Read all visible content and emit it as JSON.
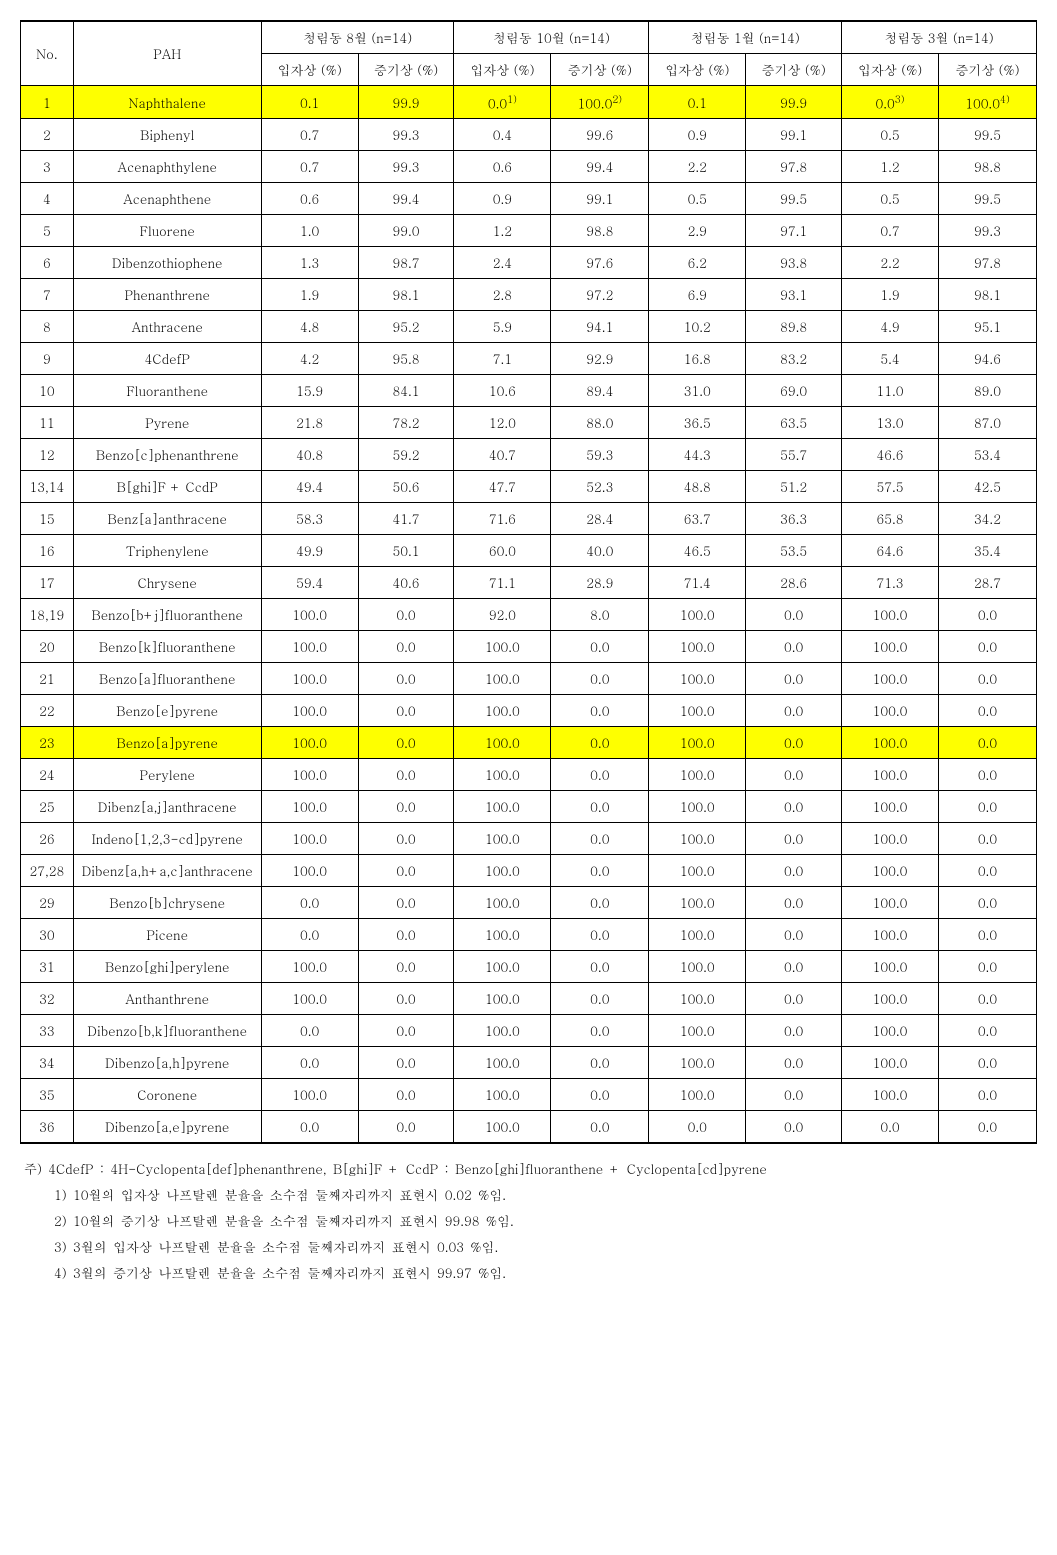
{
  "header": {
    "no": "No.",
    "pah": "PAH",
    "months": [
      {
        "title": "청림동 8월 (n=14)",
        "sub1": "입자상 (%)",
        "sub2": "증기상 (%)"
      },
      {
        "title": "청림동 10월 (n=14)",
        "sub1": "입자상 (%)",
        "sub2": "증기상 (%)"
      },
      {
        "title": "청림동 1월 (n=14)",
        "sub1": "입자상 (%)",
        "sub2": "증기상 (%)"
      },
      {
        "title": "청림동 3월 (n=14)",
        "sub1": "입자상 (%)",
        "sub2": "증기상 (%)"
      }
    ]
  },
  "rows": [
    {
      "no": "1",
      "pah": "Naphthalene",
      "v": [
        "0.1",
        "99.9",
        "0.0",
        "100.0",
        "0.1",
        "99.9",
        "0.0",
        "100.0"
      ],
      "sup": [
        "",
        "",
        "1)",
        "2)",
        "",
        "",
        "3)",
        "4)"
      ],
      "hl": true
    },
    {
      "no": "2",
      "pah": "Biphenyl",
      "v": [
        "0.7",
        "99.3",
        "0.4",
        "99.6",
        "0.9",
        "99.1",
        "0.5",
        "99.5"
      ]
    },
    {
      "no": "3",
      "pah": "Acenaphthylene",
      "v": [
        "0.7",
        "99.3",
        "0.6",
        "99.4",
        "2.2",
        "97.8",
        "1.2",
        "98.8"
      ]
    },
    {
      "no": "4",
      "pah": "Acenaphthene",
      "v": [
        "0.6",
        "99.4",
        "0.9",
        "99.1",
        "0.5",
        "99.5",
        "0.5",
        "99.5"
      ]
    },
    {
      "no": "5",
      "pah": "Fluorene",
      "v": [
        "1.0",
        "99.0",
        "1.2",
        "98.8",
        "2.9",
        "97.1",
        "0.7",
        "99.3"
      ]
    },
    {
      "no": "6",
      "pah": "Dibenzothiophene",
      "v": [
        "1.3",
        "98.7",
        "2.4",
        "97.6",
        "6.2",
        "93.8",
        "2.2",
        "97.8"
      ]
    },
    {
      "no": "7",
      "pah": "Phenanthrene",
      "v": [
        "1.9",
        "98.1",
        "2.8",
        "97.2",
        "6.9",
        "93.1",
        "1.9",
        "98.1"
      ]
    },
    {
      "no": "8",
      "pah": "Anthracene",
      "v": [
        "4.8",
        "95.2",
        "5.9",
        "94.1",
        "10.2",
        "89.8",
        "4.9",
        "95.1"
      ]
    },
    {
      "no": "9",
      "pah": "4CdefP",
      "v": [
        "4.2",
        "95.8",
        "7.1",
        "92.9",
        "16.8",
        "83.2",
        "5.4",
        "94.6"
      ]
    },
    {
      "no": "10",
      "pah": "Fluoranthene",
      "v": [
        "15.9",
        "84.1",
        "10.6",
        "89.4",
        "31.0",
        "69.0",
        "11.0",
        "89.0"
      ]
    },
    {
      "no": "11",
      "pah": "Pyrene",
      "v": [
        "21.8",
        "78.2",
        "12.0",
        "88.0",
        "36.5",
        "63.5",
        "13.0",
        "87.0"
      ]
    },
    {
      "no": "12",
      "pah": "Benzo[c]phenanthrene",
      "v": [
        "40.8",
        "59.2",
        "40.7",
        "59.3",
        "44.3",
        "55.7",
        "46.6",
        "53.4"
      ]
    },
    {
      "no": "13,14",
      "pah": "B[ghi]F + CcdP",
      "v": [
        "49.4",
        "50.6",
        "47.7",
        "52.3",
        "48.8",
        "51.2",
        "57.5",
        "42.5"
      ]
    },
    {
      "no": "15",
      "pah": "Benz[a]anthracene",
      "v": [
        "58.3",
        "41.7",
        "71.6",
        "28.4",
        "63.7",
        "36.3",
        "65.8",
        "34.2"
      ]
    },
    {
      "no": "16",
      "pah": "Triphenylene",
      "v": [
        "49.9",
        "50.1",
        "60.0",
        "40.0",
        "46.5",
        "53.5",
        "64.6",
        "35.4"
      ]
    },
    {
      "no": "17",
      "pah": "Chrysene",
      "v": [
        "59.4",
        "40.6",
        "71.1",
        "28.9",
        "71.4",
        "28.6",
        "71.3",
        "28.7"
      ]
    },
    {
      "no": "18,19",
      "pah": "Benzo[b+j]fluoranthene",
      "v": [
        "100.0",
        "0.0",
        "92.0",
        "8.0",
        "100.0",
        "0.0",
        "100.0",
        "0.0"
      ]
    },
    {
      "no": "20",
      "pah": "Benzo[k]fluoranthene",
      "v": [
        "100.0",
        "0.0",
        "100.0",
        "0.0",
        "100.0",
        "0.0",
        "100.0",
        "0.0"
      ]
    },
    {
      "no": "21",
      "pah": "Benzo[a]fluoranthene",
      "v": [
        "100.0",
        "0.0",
        "100.0",
        "0.0",
        "100.0",
        "0.0",
        "100.0",
        "0.0"
      ]
    },
    {
      "no": "22",
      "pah": "Benzo[e]pyrene",
      "v": [
        "100.0",
        "0.0",
        "100.0",
        "0.0",
        "100.0",
        "0.0",
        "100.0",
        "0.0"
      ]
    },
    {
      "no": "23",
      "pah": "Benzo[a]pyrene",
      "v": [
        "100.0",
        "0.0",
        "100.0",
        "0.0",
        "100.0",
        "0.0",
        "100.0",
        "0.0"
      ],
      "hl": true
    },
    {
      "no": "24",
      "pah": "Perylene",
      "v": [
        "100.0",
        "0.0",
        "100.0",
        "0.0",
        "100.0",
        "0.0",
        "100.0",
        "0.0"
      ]
    },
    {
      "no": "25",
      "pah": "Dibenz[a,j]anthracene",
      "v": [
        "100.0",
        "0.0",
        "100.0",
        "0.0",
        "100.0",
        "0.0",
        "100.0",
        "0.0"
      ]
    },
    {
      "no": "26",
      "pah": "Indeno[1,2,3-cd]pyrene",
      "v": [
        "100.0",
        "0.0",
        "100.0",
        "0.0",
        "100.0",
        "0.0",
        "100.0",
        "0.0"
      ]
    },
    {
      "no": "27,28",
      "pah": "Dibenz[a,h+a,c]anthracene",
      "v": [
        "100.0",
        "0.0",
        "100.0",
        "0.0",
        "100.0",
        "0.0",
        "100.0",
        "0.0"
      ]
    },
    {
      "no": "29",
      "pah": "Benzo[b]chrysene",
      "v": [
        "0.0",
        "0.0",
        "100.0",
        "0.0",
        "100.0",
        "0.0",
        "100.0",
        "0.0"
      ]
    },
    {
      "no": "30",
      "pah": "Picene",
      "v": [
        "0.0",
        "0.0",
        "100.0",
        "0.0",
        "100.0",
        "0.0",
        "100.0",
        "0.0"
      ]
    },
    {
      "no": "31",
      "pah": "Benzo[ghi]perylene",
      "v": [
        "100.0",
        "0.0",
        "100.0",
        "0.0",
        "100.0",
        "0.0",
        "100.0",
        "0.0"
      ]
    },
    {
      "no": "32",
      "pah": "Anthanthrene",
      "v": [
        "100.0",
        "0.0",
        "100.0",
        "0.0",
        "100.0",
        "0.0",
        "100.0",
        "0.0"
      ]
    },
    {
      "no": "33",
      "pah": "Dibenzo[b,k]fluoranthene",
      "v": [
        "0.0",
        "0.0",
        "100.0",
        "0.0",
        "100.0",
        "0.0",
        "100.0",
        "0.0"
      ]
    },
    {
      "no": "34",
      "pah": "Dibenzo[a,h]pyrene",
      "v": [
        "0.0",
        "0.0",
        "100.0",
        "0.0",
        "100.0",
        "0.0",
        "100.0",
        "0.0"
      ]
    },
    {
      "no": "35",
      "pah": "Coronene",
      "v": [
        "100.0",
        "0.0",
        "100.0",
        "0.0",
        "100.0",
        "0.0",
        "100.0",
        "0.0"
      ]
    },
    {
      "no": "36",
      "pah": "Dibenzo[a,e]pyrene",
      "v": [
        "0.0",
        "0.0",
        "100.0",
        "0.0",
        "0.0",
        "0.0",
        "0.0",
        "0.0"
      ]
    }
  ],
  "footnotes": {
    "lead": "주)  4CdefP : 4H-Cyclopenta[def]phenanthrene, B[ghi]F + CcdP : Benzo[ghi]fluoranthene + Cyclopenta[cd]pyrene",
    "n1": "1) 10월의 입자상 나프탈렌 분율을 소수점 둘째자리까지 표현시 0.02 %임.",
    "n2": "2) 10월의 증기상 나프탈렌 분율을 소수점 둘째자리까지 표현시 99.98 %임.",
    "n3": "3) 3월의 입자상 나프탈렌 분율을 소수점 둘째자리까지 표현시 0.03 %임.",
    "n4": "4) 3월의 증기상 나프탈렌 분율을 소수점 둘째자리까지 표현시 99.97 %임."
  }
}
